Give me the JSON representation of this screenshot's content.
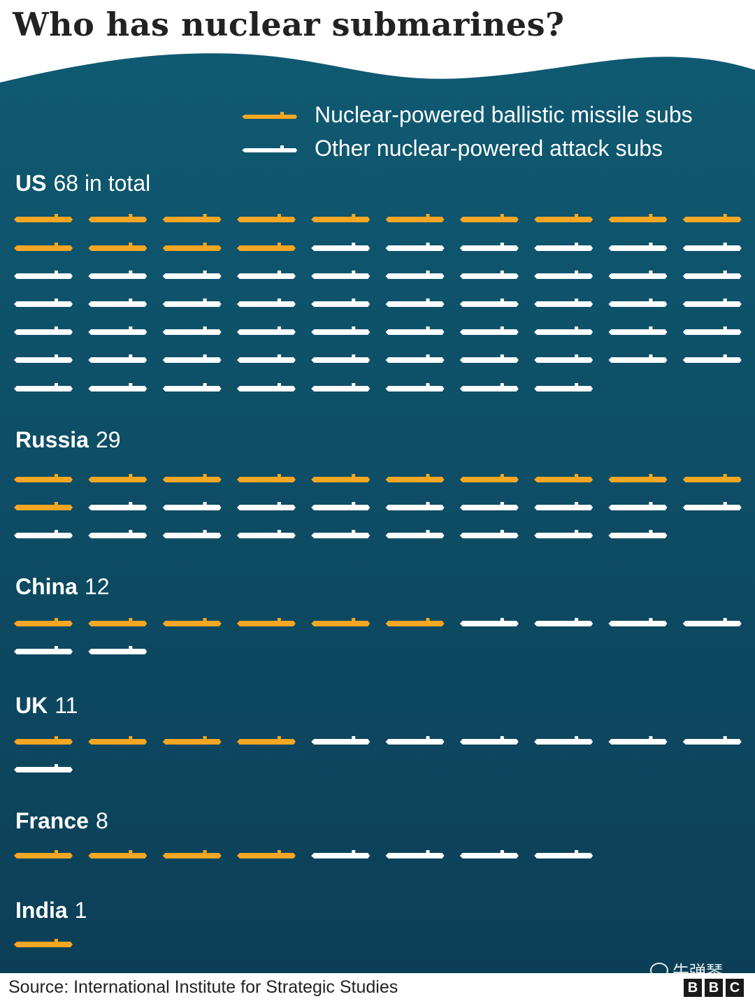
{
  "title": "Who has nuclear submarines?",
  "colors": {
    "ocean_top": "#0f5a72",
    "ocean_bottom": "#0c3f57",
    "ballistic": "#f5a623",
    "attack": "#ffffff"
  },
  "legend": {
    "ballistic": "Nuclear-powered ballistic missile subs",
    "attack": "Other nuclear-powered attack subs"
  },
  "chart_data": {
    "type": "pictogram",
    "title": "Who has nuclear submarines?",
    "series": [
      {
        "name": "Nuclear-powered ballistic missile subs"
      },
      {
        "name": "Other nuclear-powered attack subs"
      }
    ],
    "countries": [
      {
        "name": "US",
        "total_label": "68 in total",
        "total": 68,
        "ballistic": 14,
        "attack": 54
      },
      {
        "name": "Russia",
        "total_label": "29",
        "total": 29,
        "ballistic": 11,
        "attack": 18
      },
      {
        "name": "China",
        "total_label": "12",
        "total": 12,
        "ballistic": 6,
        "attack": 6
      },
      {
        "name": "UK",
        "total_label": "11",
        "total": 11,
        "ballistic": 4,
        "attack": 7
      },
      {
        "name": "France",
        "total_label": "8",
        "total": 8,
        "ballistic": 4,
        "attack": 4
      },
      {
        "name": "India",
        "total_label": "1",
        "total": 1,
        "ballistic": 1,
        "attack": 0
      }
    ]
  },
  "source": "Source: International Institute for Strategic Studies",
  "watermark": "牛弹琴",
  "logo": "BBC"
}
